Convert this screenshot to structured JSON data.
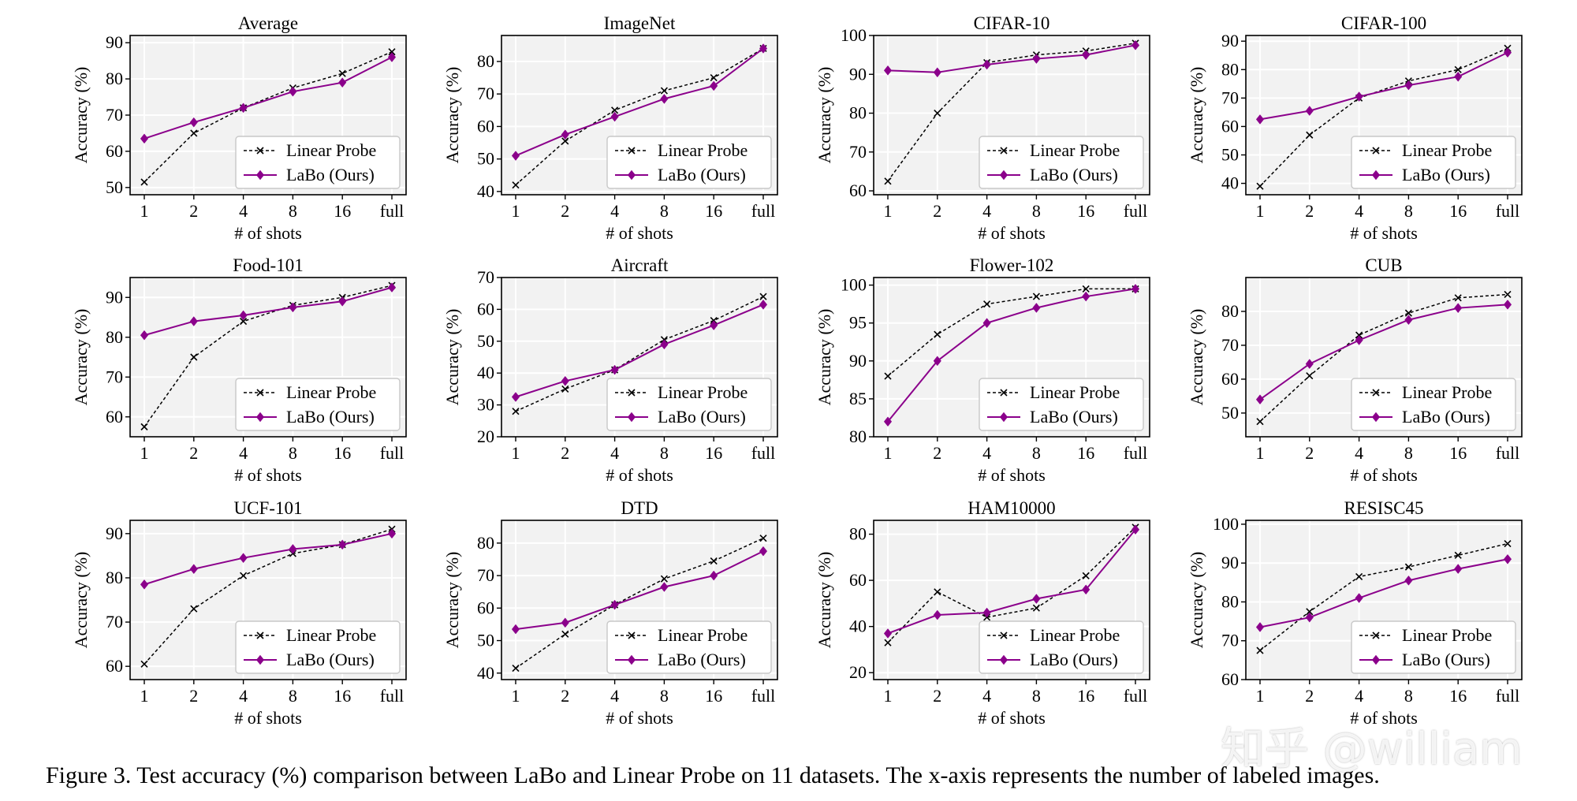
{
  "figure": {
    "caption": "Figure 3. Test accuracy (%) comparison between LaBo and Linear Probe on 11 datasets. The x-axis represents the number of labeled images.",
    "watermark": "知乎 @william"
  },
  "colors": {
    "linear_probe": "#000000",
    "labo": "#8b008b",
    "plot_background": "#f2f2f2",
    "grid": "#ffffff"
  },
  "chart_data": [
    {
      "type": "line",
      "title": "Average",
      "xlabel": "# of shots",
      "ylabel": "Accuracy (%)",
      "categories": [
        "1",
        "2",
        "4",
        "8",
        "16",
        "full"
      ],
      "ylim": [
        48,
        92
      ],
      "yticks": [
        50,
        60,
        70,
        80,
        90
      ],
      "legend": "lower-right",
      "series": [
        {
          "name": "Linear Probe",
          "style": "dashed-x",
          "values": [
            51.5,
            65,
            72,
            77.5,
            81.5,
            87.5
          ]
        },
        {
          "name": "LaBo (Ours)",
          "style": "solid-diamond",
          "values": [
            63.5,
            68,
            72,
            76.5,
            79,
            86
          ]
        }
      ]
    },
    {
      "type": "line",
      "title": "ImageNet",
      "xlabel": "# of shots",
      "ylabel": "Accuracy (%)",
      "categories": [
        "1",
        "2",
        "4",
        "8",
        "16",
        "full"
      ],
      "ylim": [
        39,
        88
      ],
      "yticks": [
        40,
        50,
        60,
        70,
        80
      ],
      "legend": "lower-right",
      "series": [
        {
          "name": "Linear Probe",
          "style": "dashed-x",
          "values": [
            42,
            55.5,
            65,
            71,
            75,
            84
          ]
        },
        {
          "name": "LaBo (Ours)",
          "style": "solid-diamond",
          "values": [
            51,
            57.5,
            63,
            68.5,
            72.5,
            84
          ]
        }
      ]
    },
    {
      "type": "line",
      "title": "CIFAR-10",
      "xlabel": "# of shots",
      "ylabel": "Accuracy (%)",
      "categories": [
        "1",
        "2",
        "4",
        "8",
        "16",
        "full"
      ],
      "ylim": [
        59,
        100
      ],
      "yticks": [
        60,
        70,
        80,
        90,
        100
      ],
      "legend": "lower-right",
      "series": [
        {
          "name": "Linear Probe",
          "style": "dashed-x",
          "values": [
            62.5,
            80,
            93,
            95,
            96,
            98
          ]
        },
        {
          "name": "LaBo (Ours)",
          "style": "solid-diamond",
          "values": [
            91,
            90.5,
            92.5,
            94,
            95,
            97.5
          ]
        }
      ]
    },
    {
      "type": "line",
      "title": "CIFAR-100",
      "xlabel": "# of shots",
      "ylabel": "Accuracy (%)",
      "categories": [
        "1",
        "2",
        "4",
        "8",
        "16",
        "full"
      ],
      "ylim": [
        36,
        92
      ],
      "yticks": [
        40,
        50,
        60,
        70,
        80,
        90
      ],
      "legend": "lower-right",
      "series": [
        {
          "name": "Linear Probe",
          "style": "dashed-x",
          "values": [
            39,
            57,
            70,
            76,
            80,
            87.5
          ]
        },
        {
          "name": "LaBo (Ours)",
          "style": "solid-diamond",
          "values": [
            62.5,
            65.5,
            70.5,
            74.5,
            77.5,
            86
          ]
        }
      ]
    },
    {
      "type": "line",
      "title": "Food-101",
      "xlabel": "# of shots",
      "ylabel": "Accuracy (%)",
      "categories": [
        "1",
        "2",
        "4",
        "8",
        "16",
        "full"
      ],
      "ylim": [
        55,
        95
      ],
      "yticks": [
        60,
        70,
        80,
        90
      ],
      "legend": "lower-right",
      "series": [
        {
          "name": "Linear Probe",
          "style": "dashed-x",
          "values": [
            57.5,
            75,
            84,
            88,
            90,
            93
          ]
        },
        {
          "name": "LaBo (Ours)",
          "style": "solid-diamond",
          "values": [
            80.5,
            84,
            85.5,
            87.5,
            89,
            92.5
          ]
        }
      ]
    },
    {
      "type": "line",
      "title": "Aircraft",
      "xlabel": "# of shots",
      "ylabel": "Accuracy (%)",
      "categories": [
        "1",
        "2",
        "4",
        "8",
        "16",
        "full"
      ],
      "ylim": [
        20,
        70
      ],
      "yticks": [
        20,
        30,
        40,
        50,
        60,
        70
      ],
      "legend": "lower-right",
      "series": [
        {
          "name": "Linear Probe",
          "style": "dashed-x",
          "values": [
            28,
            35,
            41,
            50.5,
            56.5,
            64
          ]
        },
        {
          "name": "LaBo (Ours)",
          "style": "solid-diamond",
          "values": [
            32.5,
            37.5,
            41,
            49,
            55,
            61.5
          ]
        }
      ]
    },
    {
      "type": "line",
      "title": "Flower-102",
      "xlabel": "# of shots",
      "ylabel": "Accuracy (%)",
      "categories": [
        "1",
        "2",
        "4",
        "8",
        "16",
        "full"
      ],
      "ylim": [
        80,
        101
      ],
      "yticks": [
        80,
        85,
        90,
        95,
        100
      ],
      "legend": "lower-right",
      "series": [
        {
          "name": "Linear Probe",
          "style": "dashed-x",
          "values": [
            88,
            93.5,
            97.5,
            98.5,
            99.5,
            99.5
          ]
        },
        {
          "name": "LaBo (Ours)",
          "style": "solid-diamond",
          "values": [
            82,
            90,
            95,
            97,
            98.5,
            99.5
          ]
        }
      ]
    },
    {
      "type": "line",
      "title": "CUB",
      "xlabel": "# of shots",
      "ylabel": "Accuracy (%)",
      "categories": [
        "1",
        "2",
        "4",
        "8",
        "16",
        "full"
      ],
      "ylim": [
        43,
        90
      ],
      "yticks": [
        50,
        60,
        70,
        80
      ],
      "legend": "lower-right",
      "series": [
        {
          "name": "Linear Probe",
          "style": "dashed-x",
          "values": [
            47.5,
            61,
            73,
            79.5,
            84,
            85
          ]
        },
        {
          "name": "LaBo (Ours)",
          "style": "solid-diamond",
          "values": [
            54,
            64.5,
            71.5,
            77.5,
            81,
            82
          ]
        }
      ]
    },
    {
      "type": "line",
      "title": "UCF-101",
      "xlabel": "# of shots",
      "ylabel": "Accuracy (%)",
      "categories": [
        "1",
        "2",
        "4",
        "8",
        "16",
        "full"
      ],
      "ylim": [
        57,
        93
      ],
      "yticks": [
        60,
        70,
        80,
        90
      ],
      "legend": "lower-right",
      "series": [
        {
          "name": "Linear Probe",
          "style": "dashed-x",
          "values": [
            60.5,
            73,
            80.5,
            85.5,
            87.5,
            91
          ]
        },
        {
          "name": "LaBo (Ours)",
          "style": "solid-diamond",
          "values": [
            78.5,
            82,
            84.5,
            86.5,
            87.5,
            90
          ]
        }
      ]
    },
    {
      "type": "line",
      "title": "DTD",
      "xlabel": "# of shots",
      "ylabel": "Accuracy (%)",
      "categories": [
        "1",
        "2",
        "4",
        "8",
        "16",
        "full"
      ],
      "ylim": [
        38,
        87
      ],
      "yticks": [
        40,
        50,
        60,
        70,
        80
      ],
      "legend": "lower-right",
      "series": [
        {
          "name": "Linear Probe",
          "style": "dashed-x",
          "values": [
            41.5,
            52,
            61,
            69,
            74.5,
            81.5
          ]
        },
        {
          "name": "LaBo (Ours)",
          "style": "solid-diamond",
          "values": [
            53.5,
            55.5,
            61,
            66.5,
            70,
            77.5
          ]
        }
      ]
    },
    {
      "type": "line",
      "title": "HAM10000",
      "xlabel": "# of shots",
      "ylabel": "Accuracy (%)",
      "categories": [
        "1",
        "2",
        "4",
        "8",
        "16",
        "full"
      ],
      "ylim": [
        17,
        86
      ],
      "yticks": [
        20,
        40,
        60,
        80
      ],
      "legend": "lower-right",
      "series": [
        {
          "name": "Linear Probe",
          "style": "dashed-x",
          "values": [
            33,
            55,
            44,
            48,
            62,
            83
          ]
        },
        {
          "name": "LaBo (Ours)",
          "style": "solid-diamond",
          "values": [
            37,
            45,
            46,
            52,
            56,
            82
          ]
        }
      ]
    },
    {
      "type": "line",
      "title": "RESISC45",
      "xlabel": "# of shots",
      "ylabel": "Accuracy (%)",
      "categories": [
        "1",
        "2",
        "4",
        "8",
        "16",
        "full"
      ],
      "ylim": [
        60,
        101
      ],
      "yticks": [
        60,
        70,
        80,
        90,
        100
      ],
      "legend": "lower-right",
      "series": [
        {
          "name": "Linear Probe",
          "style": "dashed-x",
          "values": [
            67.5,
            77.5,
            86.5,
            89,
            92,
            95
          ]
        },
        {
          "name": "LaBo (Ours)",
          "style": "solid-diamond",
          "values": [
            73.5,
            76,
            81,
            85.5,
            88.5,
            91
          ]
        }
      ]
    }
  ]
}
